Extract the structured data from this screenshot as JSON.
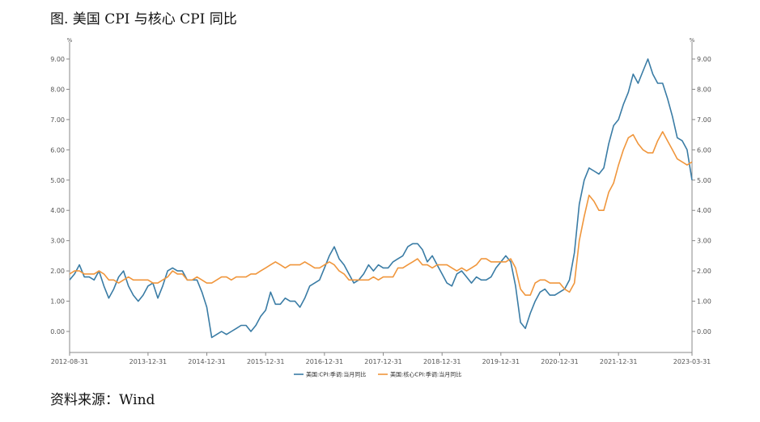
{
  "figure": {
    "title": "图. 美国 CPI 与核心 CPI 同比",
    "source": "资料来源：Wind"
  },
  "chart_data": {
    "type": "line",
    "title": "图. 美国 CPI 与核心 CPI 同比",
    "left_unit": "%",
    "right_unit": "%",
    "ylim": [
      0,
      9
    ],
    "y_ticks": [
      "0.00",
      "1.00",
      "2.00",
      "3.00",
      "4.00",
      "5.00",
      "6.00",
      "7.00",
      "8.00",
      "9.00"
    ],
    "x_ticks": [
      "2012-08-31",
      "2013-12-31",
      "2014-12-31",
      "2015-12-31",
      "2016-12-31",
      "2017-12-31",
      "2018-12-31",
      "2019-12-31",
      "2020-12-31",
      "2021-12-31",
      "2023-03-31"
    ],
    "x_range": [
      "2012-08",
      "2023-03"
    ],
    "grid": false,
    "legend_position": "bottom",
    "colors": {
      "cpi": "#3a7ca5",
      "core": "#f0963c",
      "axis": "#888888"
    },
    "series": [
      {
        "name": "美国:CPI:季调:当月同比",
        "points": [
          [
            "2012-08",
            1.7
          ],
          [
            "2012-09",
            1.9
          ],
          [
            "2012-10",
            2.2
          ],
          [
            "2012-11",
            1.8
          ],
          [
            "2012-12",
            1.8
          ],
          [
            "2013-01",
            1.7
          ],
          [
            "2013-02",
            2.0
          ],
          [
            "2013-03",
            1.5
          ],
          [
            "2013-04",
            1.1
          ],
          [
            "2013-05",
            1.4
          ],
          [
            "2013-06",
            1.8
          ],
          [
            "2013-07",
            2.0
          ],
          [
            "2013-08",
            1.5
          ],
          [
            "2013-09",
            1.2
          ],
          [
            "2013-10",
            1.0
          ],
          [
            "2013-11",
            1.2
          ],
          [
            "2013-12",
            1.5
          ],
          [
            "2014-01",
            1.6
          ],
          [
            "2014-02",
            1.1
          ],
          [
            "2014-03",
            1.5
          ],
          [
            "2014-04",
            2.0
          ],
          [
            "2014-05",
            2.1
          ],
          [
            "2014-06",
            2.0
          ],
          [
            "2014-07",
            2.0
          ],
          [
            "2014-08",
            1.7
          ],
          [
            "2014-09",
            1.7
          ],
          [
            "2014-10",
            1.7
          ],
          [
            "2014-11",
            1.3
          ],
          [
            "2014-12",
            0.8
          ],
          [
            "2015-01",
            -0.2
          ],
          [
            "2015-02",
            -0.1
          ],
          [
            "2015-03",
            0.0
          ],
          [
            "2015-04",
            -0.1
          ],
          [
            "2015-05",
            0.0
          ],
          [
            "2015-06",
            0.1
          ],
          [
            "2015-07",
            0.2
          ],
          [
            "2015-08",
            0.2
          ],
          [
            "2015-09",
            0.0
          ],
          [
            "2015-10",
            0.2
          ],
          [
            "2015-11",
            0.5
          ],
          [
            "2015-12",
            0.7
          ],
          [
            "2016-01",
            1.3
          ],
          [
            "2016-02",
            0.9
          ],
          [
            "2016-03",
            0.9
          ],
          [
            "2016-04",
            1.1
          ],
          [
            "2016-05",
            1.0
          ],
          [
            "2016-06",
            1.0
          ],
          [
            "2016-07",
            0.8
          ],
          [
            "2016-08",
            1.1
          ],
          [
            "2016-09",
            1.5
          ],
          [
            "2016-10",
            1.6
          ],
          [
            "2016-11",
            1.7
          ],
          [
            "2016-12",
            2.1
          ],
          [
            "2017-01",
            2.5
          ],
          [
            "2017-02",
            2.8
          ],
          [
            "2017-03",
            2.4
          ],
          [
            "2017-04",
            2.2
          ],
          [
            "2017-05",
            1.9
          ],
          [
            "2017-06",
            1.6
          ],
          [
            "2017-07",
            1.7
          ],
          [
            "2017-08",
            1.9
          ],
          [
            "2017-09",
            2.2
          ],
          [
            "2017-10",
            2.0
          ],
          [
            "2017-11",
            2.2
          ],
          [
            "2017-12",
            2.1
          ],
          [
            "2018-01",
            2.1
          ],
          [
            "2018-02",
            2.3
          ],
          [
            "2018-03",
            2.4
          ],
          [
            "2018-04",
            2.5
          ],
          [
            "2018-05",
            2.8
          ],
          [
            "2018-06",
            2.9
          ],
          [
            "2018-07",
            2.9
          ],
          [
            "2018-08",
            2.7
          ],
          [
            "2018-09",
            2.3
          ],
          [
            "2018-10",
            2.5
          ],
          [
            "2018-11",
            2.2
          ],
          [
            "2018-12",
            1.9
          ],
          [
            "2019-01",
            1.6
          ],
          [
            "2019-02",
            1.5
          ],
          [
            "2019-03",
            1.9
          ],
          [
            "2019-04",
            2.0
          ],
          [
            "2019-05",
            1.8
          ],
          [
            "2019-06",
            1.6
          ],
          [
            "2019-07",
            1.8
          ],
          [
            "2019-08",
            1.7
          ],
          [
            "2019-09",
            1.7
          ],
          [
            "2019-10",
            1.8
          ],
          [
            "2019-11",
            2.1
          ],
          [
            "2019-12",
            2.3
          ],
          [
            "2020-01",
            2.5
          ],
          [
            "2020-02",
            2.3
          ],
          [
            "2020-03",
            1.5
          ],
          [
            "2020-04",
            0.3
          ],
          [
            "2020-05",
            0.1
          ],
          [
            "2020-06",
            0.6
          ],
          [
            "2020-07",
            1.0
          ],
          [
            "2020-08",
            1.3
          ],
          [
            "2020-09",
            1.4
          ],
          [
            "2020-10",
            1.2
          ],
          [
            "2020-11",
            1.2
          ],
          [
            "2020-12",
            1.3
          ],
          [
            "2021-01",
            1.4
          ],
          [
            "2021-02",
            1.7
          ],
          [
            "2021-03",
            2.6
          ],
          [
            "2021-04",
            4.2
          ],
          [
            "2021-05",
            5.0
          ],
          [
            "2021-06",
            5.4
          ],
          [
            "2021-07",
            5.3
          ],
          [
            "2021-08",
            5.2
          ],
          [
            "2021-09",
            5.4
          ],
          [
            "2021-10",
            6.2
          ],
          [
            "2021-11",
            6.8
          ],
          [
            "2021-12",
            7.0
          ],
          [
            "2022-01",
            7.5
          ],
          [
            "2022-02",
            7.9
          ],
          [
            "2022-03",
            8.5
          ],
          [
            "2022-04",
            8.2
          ],
          [
            "2022-05",
            8.6
          ],
          [
            "2022-06",
            9.0
          ],
          [
            "2022-07",
            8.5
          ],
          [
            "2022-08",
            8.2
          ],
          [
            "2022-09",
            8.2
          ],
          [
            "2022-10",
            7.7
          ],
          [
            "2022-11",
            7.1
          ],
          [
            "2022-12",
            6.4
          ],
          [
            "2023-01",
            6.3
          ],
          [
            "2023-02",
            6.0
          ],
          [
            "2023-03",
            5.0
          ]
        ]
      },
      {
        "name": "美国:核心CPI:季调:当月同比",
        "points": [
          [
            "2012-08",
            1.9
          ],
          [
            "2012-09",
            2.0
          ],
          [
            "2012-10",
            2.0
          ],
          [
            "2012-11",
            1.9
          ],
          [
            "2012-12",
            1.9
          ],
          [
            "2013-01",
            1.9
          ],
          [
            "2013-02",
            2.0
          ],
          [
            "2013-03",
            1.9
          ],
          [
            "2013-04",
            1.7
          ],
          [
            "2013-05",
            1.7
          ],
          [
            "2013-06",
            1.6
          ],
          [
            "2013-07",
            1.7
          ],
          [
            "2013-08",
            1.8
          ],
          [
            "2013-09",
            1.7
          ],
          [
            "2013-10",
            1.7
          ],
          [
            "2013-11",
            1.7
          ],
          [
            "2013-12",
            1.7
          ],
          [
            "2014-01",
            1.6
          ],
          [
            "2014-02",
            1.6
          ],
          [
            "2014-03",
            1.7
          ],
          [
            "2014-04",
            1.8
          ],
          [
            "2014-05",
            2.0
          ],
          [
            "2014-06",
            1.9
          ],
          [
            "2014-07",
            1.9
          ],
          [
            "2014-08",
            1.7
          ],
          [
            "2014-09",
            1.7
          ],
          [
            "2014-10",
            1.8
          ],
          [
            "2014-11",
            1.7
          ],
          [
            "2014-12",
            1.6
          ],
          [
            "2015-01",
            1.6
          ],
          [
            "2015-02",
            1.7
          ],
          [
            "2015-03",
            1.8
          ],
          [
            "2015-04",
            1.8
          ],
          [
            "2015-05",
            1.7
          ],
          [
            "2015-06",
            1.8
          ],
          [
            "2015-07",
            1.8
          ],
          [
            "2015-08",
            1.8
          ],
          [
            "2015-09",
            1.9
          ],
          [
            "2015-10",
            1.9
          ],
          [
            "2015-11",
            2.0
          ],
          [
            "2015-12",
            2.1
          ],
          [
            "2016-01",
            2.2
          ],
          [
            "2016-02",
            2.3
          ],
          [
            "2016-03",
            2.2
          ],
          [
            "2016-04",
            2.1
          ],
          [
            "2016-05",
            2.2
          ],
          [
            "2016-06",
            2.2
          ],
          [
            "2016-07",
            2.2
          ],
          [
            "2016-08",
            2.3
          ],
          [
            "2016-09",
            2.2
          ],
          [
            "2016-10",
            2.1
          ],
          [
            "2016-11",
            2.1
          ],
          [
            "2016-12",
            2.2
          ],
          [
            "2017-01",
            2.3
          ],
          [
            "2017-02",
            2.2
          ],
          [
            "2017-03",
            2.0
          ],
          [
            "2017-04",
            1.9
          ],
          [
            "2017-05",
            1.7
          ],
          [
            "2017-06",
            1.7
          ],
          [
            "2017-07",
            1.7
          ],
          [
            "2017-08",
            1.7
          ],
          [
            "2017-09",
            1.7
          ],
          [
            "2017-10",
            1.8
          ],
          [
            "2017-11",
            1.7
          ],
          [
            "2017-12",
            1.8
          ],
          [
            "2018-01",
            1.8
          ],
          [
            "2018-02",
            1.8
          ],
          [
            "2018-03",
            2.1
          ],
          [
            "2018-04",
            2.1
          ],
          [
            "2018-05",
            2.2
          ],
          [
            "2018-06",
            2.3
          ],
          [
            "2018-07",
            2.4
          ],
          [
            "2018-08",
            2.2
          ],
          [
            "2018-09",
            2.2
          ],
          [
            "2018-10",
            2.1
          ],
          [
            "2018-11",
            2.2
          ],
          [
            "2018-12",
            2.2
          ],
          [
            "2019-01",
            2.2
          ],
          [
            "2019-02",
            2.1
          ],
          [
            "2019-03",
            2.0
          ],
          [
            "2019-04",
            2.1
          ],
          [
            "2019-05",
            2.0
          ],
          [
            "2019-06",
            2.1
          ],
          [
            "2019-07",
            2.2
          ],
          [
            "2019-08",
            2.4
          ],
          [
            "2019-09",
            2.4
          ],
          [
            "2019-10",
            2.3
          ],
          [
            "2019-11",
            2.3
          ],
          [
            "2019-12",
            2.3
          ],
          [
            "2020-01",
            2.3
          ],
          [
            "2020-02",
            2.4
          ],
          [
            "2020-03",
            2.1
          ],
          [
            "2020-04",
            1.4
          ],
          [
            "2020-05",
            1.2
          ],
          [
            "2020-06",
            1.2
          ],
          [
            "2020-07",
            1.6
          ],
          [
            "2020-08",
            1.7
          ],
          [
            "2020-09",
            1.7
          ],
          [
            "2020-10",
            1.6
          ],
          [
            "2020-11",
            1.6
          ],
          [
            "2020-12",
            1.6
          ],
          [
            "2021-01",
            1.4
          ],
          [
            "2021-02",
            1.3
          ],
          [
            "2021-03",
            1.6
          ],
          [
            "2021-04",
            3.0
          ],
          [
            "2021-05",
            3.8
          ],
          [
            "2021-06",
            4.5
          ],
          [
            "2021-07",
            4.3
          ],
          [
            "2021-08",
            4.0
          ],
          [
            "2021-09",
            4.0
          ],
          [
            "2021-10",
            4.6
          ],
          [
            "2021-11",
            4.9
          ],
          [
            "2021-12",
            5.5
          ],
          [
            "2022-01",
            6.0
          ],
          [
            "2022-02",
            6.4
          ],
          [
            "2022-03",
            6.5
          ],
          [
            "2022-04",
            6.2
          ],
          [
            "2022-05",
            6.0
          ],
          [
            "2022-06",
            5.9
          ],
          [
            "2022-07",
            5.9
          ],
          [
            "2022-08",
            6.3
          ],
          [
            "2022-09",
            6.6
          ],
          [
            "2022-10",
            6.3
          ],
          [
            "2022-11",
            6.0
          ],
          [
            "2022-12",
            5.7
          ],
          [
            "2023-01",
            5.6
          ],
          [
            "2023-02",
            5.5
          ],
          [
            "2023-03",
            5.6
          ]
        ]
      }
    ]
  }
}
